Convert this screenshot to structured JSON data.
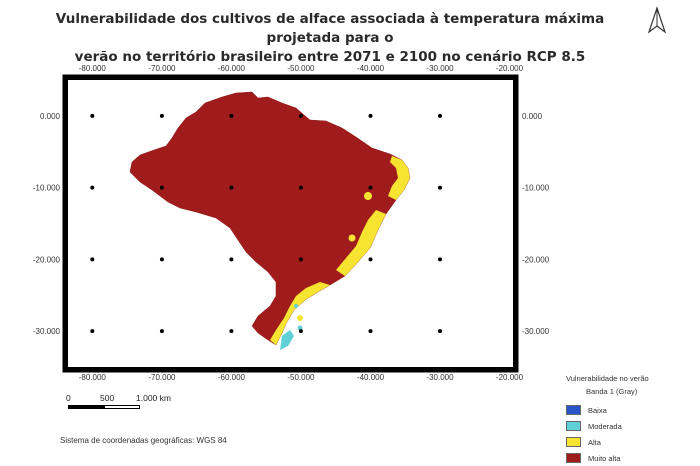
{
  "title": "Vulnerabilidade dos cultivos de alface associada à temperatura máxima projetada para o verão no território brasileiro entre 2071 e 2100 no cenário RCP 8.5",
  "title_lines": [
    "Vulnerabilidade dos cultivos de alface associada à temperatura máxima projetada para o",
    "verão no território brasileiro entre 2071 e 2100 no cenário RCP 8.5"
  ],
  "north_arrow": "north-arrow-icon",
  "map": {
    "lon_ticks": [
      "-80.000",
      "-70.000",
      "-60.000",
      "-50.000",
      "-40.000",
      "-30.000",
      "-20.000"
    ],
    "lat_ticks": [
      "0.000",
      "-10.000",
      "-20.000",
      "-30.000"
    ],
    "lon_values": [
      -80,
      -70,
      -60,
      -50,
      -40,
      -30,
      -20
    ],
    "lat_values": [
      0,
      -10,
      -20,
      -30
    ],
    "lon_range": [
      -83.5,
      -19.5
    ],
    "lat_range": [
      5,
      -35
    ]
  },
  "scale_bar": {
    "labels": [
      "0",
      "500",
      "1.000 km"
    ]
  },
  "crs": "Sistema de coordenadas geográficas: WGS 84",
  "legend": {
    "title": "Vulnerabilidade no verão",
    "subtitle": "Banda 1 (Gray)",
    "items": [
      {
        "label": "Baixa",
        "color": "#2756c9"
      },
      {
        "label": "Moderada",
        "color": "#5fd0d8"
      },
      {
        "label": "Alta",
        "color": "#f6e431"
      },
      {
        "label": "Muito alta",
        "color": "#a01c1c"
      }
    ]
  },
  "colors": {
    "muito_alta": "#a01c1c",
    "alta": "#f6e431",
    "moderada": "#5fd0d8"
  }
}
